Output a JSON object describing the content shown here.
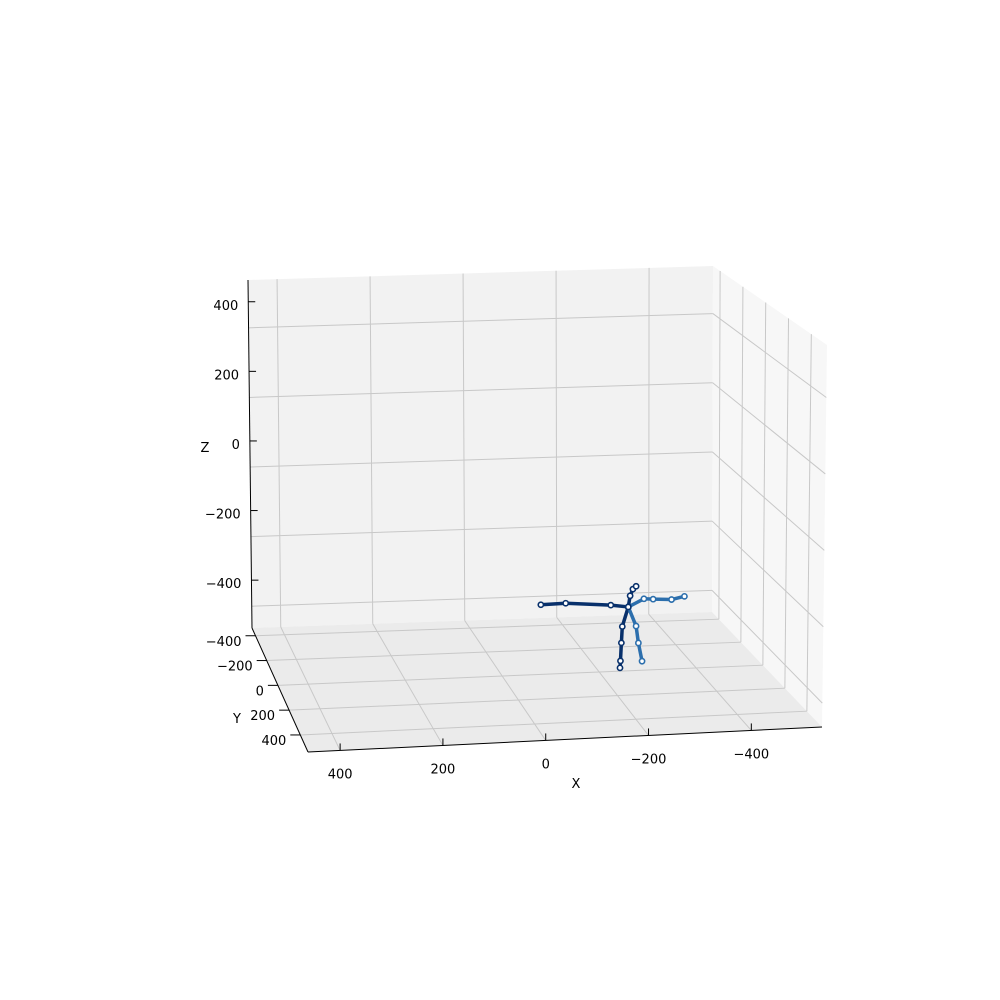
{
  "chart_data": {
    "type": "scatter3d",
    "title": "",
    "xlabel": "X",
    "ylabel": "Y",
    "zlabel": "Z",
    "x_ticks": [
      "400",
      "200",
      "0",
      "−200",
      "−400"
    ],
    "y_ticks": [
      "−400",
      "−200",
      "0",
      "200",
      "400"
    ],
    "z_ticks": [
      "400",
      "200",
      "0",
      "−200",
      "−400"
    ],
    "xlim": [
      -500,
      500
    ],
    "ylim": [
      -500,
      500
    ],
    "zlim": [
      -500,
      500
    ],
    "grid": true,
    "series": [
      {
        "color": "#08306b",
        "joints": [
          {
            "x": -318,
            "z": -477
          },
          {
            "x": -305,
            "z": -533
          },
          {
            "x": -303,
            "z": -580
          },
          {
            "x": -301,
            "z": -632
          },
          {
            "x": -300,
            "z": -652
          },
          {
            "x": -280,
            "z": -470
          },
          {
            "x": -182,
            "z": -460
          },
          {
            "x": -128,
            "z": -462
          }
        ],
        "bones": [
          [
            0,
            1
          ],
          [
            1,
            2
          ],
          [
            2,
            3
          ],
          [
            3,
            4
          ],
          [
            0,
            5
          ],
          [
            5,
            6
          ],
          [
            6,
            7
          ]
        ]
      },
      {
        "color": "#2c6fad",
        "joints": [
          {
            "x": -318,
            "z": -477
          },
          {
            "x": -335,
            "z": -533
          },
          {
            "x": -340,
            "z": -582
          },
          {
            "x": -348,
            "z": -635
          },
          {
            "x": -352,
            "z": -455
          },
          {
            "x": -372,
            "z": -457
          },
          {
            "x": -412,
            "z": -460
          },
          {
            "x": -440,
            "z": -452
          }
        ],
        "bones": [
          [
            0,
            1
          ],
          [
            1,
            2
          ],
          [
            2,
            3
          ],
          [
            0,
            4
          ],
          [
            4,
            5
          ],
          [
            5,
            6
          ],
          [
            6,
            7
          ]
        ]
      },
      {
        "color": "#08306b",
        "joints": [
          {
            "x": -318,
            "z": -477
          },
          {
            "x": -322,
            "z": -445
          },
          {
            "x": -328,
            "z": -426
          },
          {
            "x": -335,
            "z": -418
          }
        ],
        "bones": [
          [
            0,
            1
          ],
          [
            1,
            2
          ],
          [
            2,
            3
          ]
        ]
      }
    ]
  }
}
